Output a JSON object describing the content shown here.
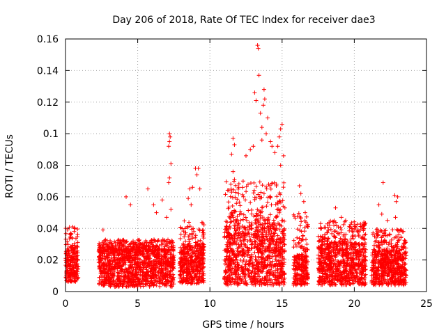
{
  "chart_data": {
    "type": "scatter",
    "title": "Day 206 of 2018, Rate Of TEC Index for receiver dae3",
    "xlabel": "GPS time / hours",
    "ylabel": "ROTI / TECUs",
    "xlim": [
      0,
      25
    ],
    "ylim": [
      0,
      0.16
    ],
    "x_ticks": [
      0,
      5,
      10,
      15,
      20,
      25
    ],
    "x_tick_labels": [
      "0",
      "5",
      "10",
      "15",
      "20",
      "25"
    ],
    "y_ticks": [
      0,
      0.02,
      0.04,
      0.06,
      0.08,
      0.1,
      0.12,
      0.14,
      0.16
    ],
    "y_tick_labels": [
      "0",
      "0.02",
      "0.04",
      "0.06",
      "0.08",
      "0.1",
      "0.12",
      "0.14",
      "0.16"
    ],
    "grid": true,
    "marker": "+",
    "color": "#ff0000",
    "series": [
      {
        "name": "ROTI",
        "segments": [
          {
            "x_range": [
              0.0,
              0.9
            ],
            "base": [
              0.006,
              0.026
            ],
            "peak": 0.041
          },
          {
            "x_range": [
              2.3,
              7.5
            ],
            "base": [
              0.003,
              0.026
            ],
            "peak": 0.033
          },
          {
            "x_range": [
              7.9,
              9.6
            ],
            "base": [
              0.005,
              0.028
            ],
            "peak": 0.045
          },
          {
            "x_range": [
              11.0,
              15.2
            ],
            "base": [
              0.004,
              0.04
            ],
            "peak": 0.07
          },
          {
            "x_range": [
              15.8,
              16.8
            ],
            "base": [
              0.004,
              0.022
            ],
            "peak": 0.05
          },
          {
            "x_range": [
              17.5,
              20.8
            ],
            "base": [
              0.004,
              0.03
            ],
            "peak": 0.045
          },
          {
            "x_range": [
              21.2,
              23.6
            ],
            "base": [
              0.004,
              0.025
            ],
            "peak": 0.04
          }
        ],
        "highlights": [
          {
            "x": 0.5,
            "y": 0.041
          },
          {
            "x": 0.3,
            "y": 0.036
          },
          {
            "x": 0.6,
            "y": 0.038
          },
          {
            "x": 2.6,
            "y": 0.039
          },
          {
            "x": 4.2,
            "y": 0.06
          },
          {
            "x": 4.5,
            "y": 0.055
          },
          {
            "x": 5.7,
            "y": 0.065
          },
          {
            "x": 6.1,
            "y": 0.055
          },
          {
            "x": 6.3,
            "y": 0.05
          },
          {
            "x": 6.7,
            "y": 0.058
          },
          {
            "x": 7.0,
            "y": 0.047
          },
          {
            "x": 7.2,
            "y": 0.1
          },
          {
            "x": 7.25,
            "y": 0.098
          },
          {
            "x": 7.2,
            "y": 0.095
          },
          {
            "x": 7.15,
            "y": 0.092
          },
          {
            "x": 7.3,
            "y": 0.081
          },
          {
            "x": 7.2,
            "y": 0.072
          },
          {
            "x": 7.15,
            "y": 0.069
          },
          {
            "x": 7.3,
            "y": 0.052
          },
          {
            "x": 8.6,
            "y": 0.065
          },
          {
            "x": 8.8,
            "y": 0.066
          },
          {
            "x": 8.5,
            "y": 0.059
          },
          {
            "x": 8.7,
            "y": 0.055
          },
          {
            "x": 9.0,
            "y": 0.078
          },
          {
            "x": 9.1,
            "y": 0.074
          },
          {
            "x": 9.2,
            "y": 0.078
          },
          {
            "x": 9.3,
            "y": 0.065
          },
          {
            "x": 11.6,
            "y": 0.097
          },
          {
            "x": 11.7,
            "y": 0.093
          },
          {
            "x": 11.5,
            "y": 0.087
          },
          {
            "x": 11.6,
            "y": 0.076
          },
          {
            "x": 11.7,
            "y": 0.071
          },
          {
            "x": 11.5,
            "y": 0.063
          },
          {
            "x": 12.0,
            "y": 0.066
          },
          {
            "x": 12.3,
            "y": 0.07
          },
          {
            "x": 12.5,
            "y": 0.086
          },
          {
            "x": 12.8,
            "y": 0.09
          },
          {
            "x": 13.0,
            "y": 0.092
          },
          {
            "x": 13.1,
            "y": 0.126
          },
          {
            "x": 13.2,
            "y": 0.121
          },
          {
            "x": 13.3,
            "y": 0.156
          },
          {
            "x": 13.35,
            "y": 0.154
          },
          {
            "x": 13.4,
            "y": 0.137
          },
          {
            "x": 13.5,
            "y": 0.113
          },
          {
            "x": 13.6,
            "y": 0.104
          },
          {
            "x": 13.7,
            "y": 0.118
          },
          {
            "x": 13.75,
            "y": 0.128
          },
          {
            "x": 13.8,
            "y": 0.122
          },
          {
            "x": 13.6,
            "y": 0.096
          },
          {
            "x": 13.9,
            "y": 0.1
          },
          {
            "x": 14.0,
            "y": 0.11
          },
          {
            "x": 14.2,
            "y": 0.095
          },
          {
            "x": 14.3,
            "y": 0.092
          },
          {
            "x": 14.5,
            "y": 0.088
          },
          {
            "x": 14.7,
            "y": 0.092
          },
          {
            "x": 14.8,
            "y": 0.098
          },
          {
            "x": 14.9,
            "y": 0.103
          },
          {
            "x": 15.0,
            "y": 0.106
          },
          {
            "x": 15.1,
            "y": 0.086
          },
          {
            "x": 14.9,
            "y": 0.08
          },
          {
            "x": 16.2,
            "y": 0.067
          },
          {
            "x": 16.3,
            "y": 0.062
          },
          {
            "x": 16.5,
            "y": 0.057
          },
          {
            "x": 16.6,
            "y": 0.05
          },
          {
            "x": 18.7,
            "y": 0.053
          },
          {
            "x": 19.1,
            "y": 0.047
          },
          {
            "x": 19.4,
            "y": 0.045
          },
          {
            "x": 22.0,
            "y": 0.069
          },
          {
            "x": 21.7,
            "y": 0.055
          },
          {
            "x": 21.9,
            "y": 0.049
          },
          {
            "x": 22.3,
            "y": 0.045
          },
          {
            "x": 22.8,
            "y": 0.061
          },
          {
            "x": 22.9,
            "y": 0.057
          },
          {
            "x": 23.0,
            "y": 0.06
          },
          {
            "x": 22.85,
            "y": 0.047
          },
          {
            "x": 23.4,
            "y": 0.038
          }
        ]
      }
    ]
  }
}
